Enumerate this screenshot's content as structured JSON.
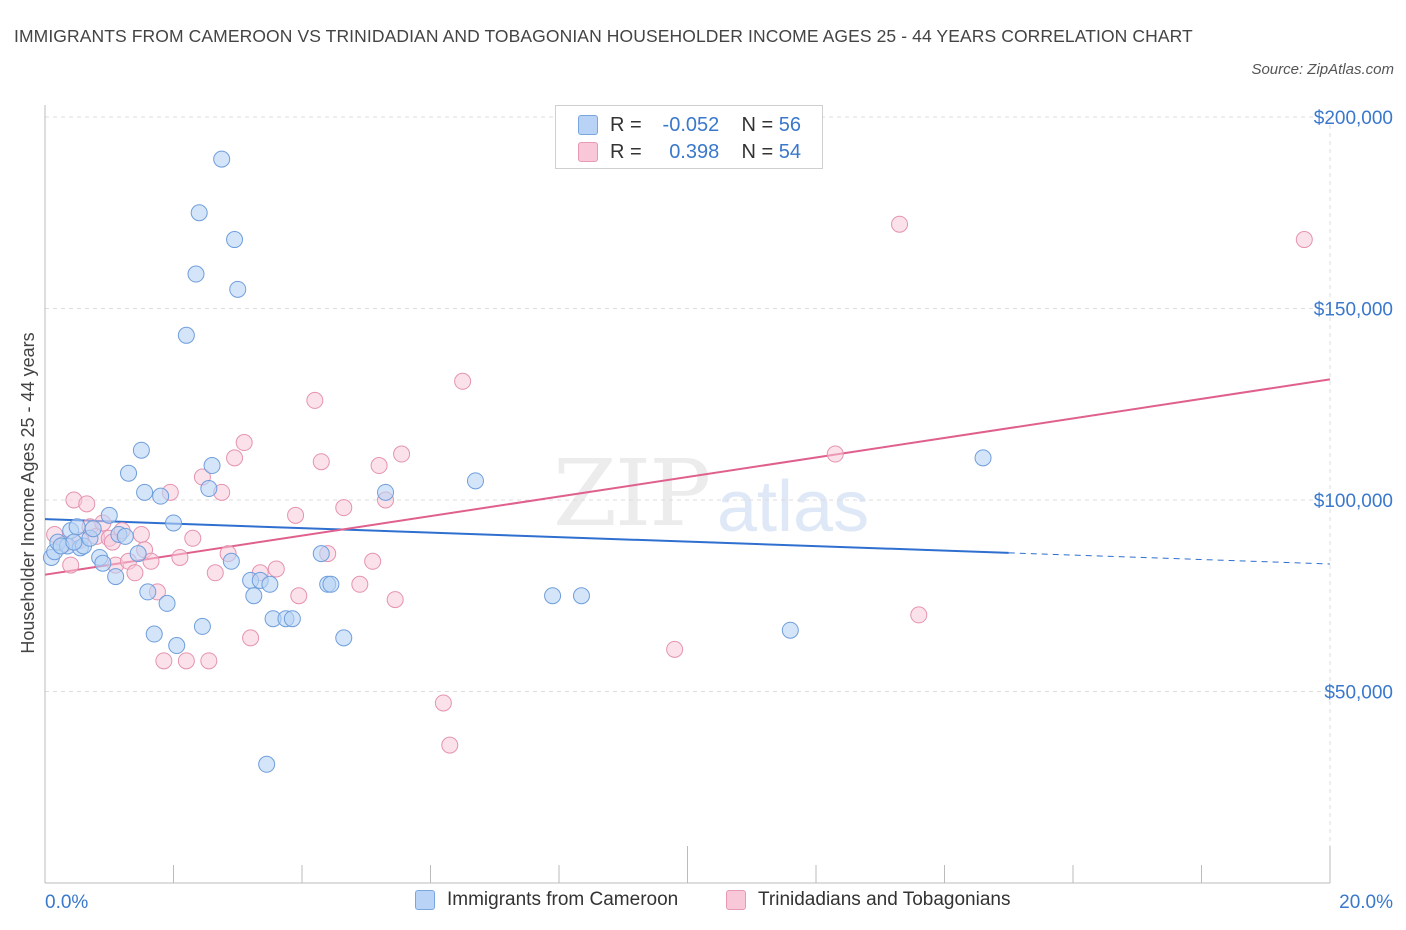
{
  "header": {
    "title": "IMMIGRANTS FROM CAMEROON VS TRINIDADIAN AND TOBAGONIAN HOUSEHOLDER INCOME AGES 25 - 44 YEARS CORRELATION CHART",
    "source": "Source: ZipAtlas.com"
  },
  "watermark": {
    "zip": "ZIP",
    "atlas": "atlas"
  },
  "legend": {
    "row1": {
      "r_label": "R =",
      "r_value": "-0.052",
      "n_label": "N =",
      "n_value": "56"
    },
    "row2": {
      "r_label": "R =",
      "r_value": "0.398",
      "n_label": "N =",
      "n_value": "54"
    }
  },
  "colors": {
    "blue_fill": "#b8d3f5",
    "blue_stroke": "#6f9edc",
    "blue_line": "#2f6fcf",
    "pink_fill": "#f8c8d8",
    "pink_stroke": "#e593b0",
    "pink_line": "#e0608d",
    "grid": "#dddddd",
    "axis_text": "#3a78cc"
  },
  "chart_data": {
    "type": "scatter",
    "title": "IMMIGRANTS FROM CAMEROON VS TRINIDADIAN AND TOBAGONIAN HOUSEHOLDER INCOME AGES 25 - 44 YEARS CORRELATION CHART",
    "xlabel": "",
    "ylabel": "Householder Income Ages 25 - 44 years",
    "xlim": [
      0,
      20
    ],
    "ylim": [
      0,
      200000
    ],
    "x_tick_labels": [
      "0.0%",
      "20.0%"
    ],
    "y_ticks": [
      50000,
      100000,
      150000,
      200000
    ],
    "y_tick_labels": [
      "$50,000",
      "$100,000",
      "$150,000",
      "$200,000"
    ],
    "grid": true,
    "legend_position": "bottom",
    "series": [
      {
        "name": "Immigrants from Cameroon",
        "color": "blue",
        "r": -0.052,
        "n": 56,
        "trend": {
          "x0": 0,
          "y0": 95000,
          "x1": 15,
          "y1": 86200,
          "dashed_to_x": 20,
          "dashed_to_y": 83300
        },
        "points": [
          [
            0.1,
            85000
          ],
          [
            0.15,
            86500
          ],
          [
            0.2,
            89000
          ],
          [
            0.35,
            88000
          ],
          [
            0.4,
            92000
          ],
          [
            0.5,
            93000
          ],
          [
            0.55,
            87500
          ],
          [
            0.6,
            88000
          ],
          [
            0.7,
            90000
          ],
          [
            0.75,
            92500
          ],
          [
            0.85,
            85000
          ],
          [
            0.9,
            83500
          ],
          [
            1.0,
            96000
          ],
          [
            1.1,
            80000
          ],
          [
            1.15,
            91000
          ],
          [
            1.3,
            107000
          ],
          [
            1.45,
            86000
          ],
          [
            1.5,
            113000
          ],
          [
            1.55,
            102000
          ],
          [
            1.6,
            76000
          ],
          [
            1.7,
            65000
          ],
          [
            1.8,
            101000
          ],
          [
            1.9,
            73000
          ],
          [
            2.0,
            94000
          ],
          [
            2.05,
            62000
          ],
          [
            2.2,
            143000
          ],
          [
            2.35,
            159000
          ],
          [
            2.4,
            175000
          ],
          [
            2.45,
            67000
          ],
          [
            2.55,
            103000
          ],
          [
            2.6,
            109000
          ],
          [
            2.75,
            189000
          ],
          [
            2.95,
            168000
          ],
          [
            3.0,
            155000
          ],
          [
            3.2,
            79000
          ],
          [
            3.25,
            75000
          ],
          [
            3.35,
            79000
          ],
          [
            3.45,
            31000
          ],
          [
            3.5,
            78000
          ],
          [
            3.55,
            69000
          ],
          [
            3.75,
            69000
          ],
          [
            3.85,
            69000
          ],
          [
            4.3,
            86000
          ],
          [
            4.4,
            78000
          ],
          [
            4.45,
            78000
          ],
          [
            4.65,
            64000
          ],
          [
            5.3,
            102000
          ],
          [
            6.7,
            105000
          ],
          [
            7.9,
            75000
          ],
          [
            8.35,
            75000
          ],
          [
            11.6,
            66000
          ],
          [
            14.6,
            111000
          ],
          [
            0.25,
            88000
          ],
          [
            0.45,
            89000
          ],
          [
            1.25,
            90500
          ],
          [
            2.9,
            84000
          ]
        ]
      },
      {
        "name": "Trinidadians and Tobagonians",
        "color": "pink",
        "r": 0.398,
        "n": 54,
        "trend": {
          "x0": 0,
          "y0": 80500,
          "x1": 20,
          "y1": 131500
        },
        "points": [
          [
            0.15,
            91000
          ],
          [
            0.3,
            88500
          ],
          [
            0.4,
            83000
          ],
          [
            0.45,
            100000
          ],
          [
            0.55,
            89500
          ],
          [
            0.65,
            99000
          ],
          [
            0.7,
            93000
          ],
          [
            0.8,
            90500
          ],
          [
            0.9,
            94000
          ],
          [
            1.0,
            90000
          ],
          [
            1.1,
            83000
          ],
          [
            1.2,
            92000
          ],
          [
            1.3,
            84000
          ],
          [
            1.4,
            81000
          ],
          [
            1.5,
            91000
          ],
          [
            1.55,
            87000
          ],
          [
            1.65,
            84000
          ],
          [
            1.75,
            76000
          ],
          [
            1.85,
            58000
          ],
          [
            1.95,
            102000
          ],
          [
            2.1,
            85000
          ],
          [
            2.2,
            58000
          ],
          [
            2.3,
            90000
          ],
          [
            2.45,
            106000
          ],
          [
            2.55,
            58000
          ],
          [
            2.65,
            81000
          ],
          [
            2.75,
            102000
          ],
          [
            2.85,
            86000
          ],
          [
            2.95,
            111000
          ],
          [
            3.1,
            115000
          ],
          [
            3.2,
            64000
          ],
          [
            3.35,
            81000
          ],
          [
            3.6,
            82000
          ],
          [
            3.9,
            96000
          ],
          [
            3.95,
            75000
          ],
          [
            4.2,
            126000
          ],
          [
            4.3,
            110000
          ],
          [
            4.4,
            86000
          ],
          [
            4.65,
            98000
          ],
          [
            4.9,
            78000
          ],
          [
            5.1,
            84000
          ],
          [
            5.2,
            109000
          ],
          [
            5.3,
            100000
          ],
          [
            5.45,
            74000
          ],
          [
            5.55,
            112000
          ],
          [
            6.2,
            47000
          ],
          [
            6.3,
            36000
          ],
          [
            6.5,
            131000
          ],
          [
            9.8,
            61000
          ],
          [
            12.3,
            112000
          ],
          [
            13.3,
            172000
          ],
          [
            13.6,
            70000
          ],
          [
            19.6,
            168000
          ],
          [
            1.05,
            89000
          ]
        ]
      }
    ]
  },
  "bottom_legend": {
    "item1": "Immigrants from Cameroon",
    "item2": "Trinidadians and Tobagonians"
  }
}
